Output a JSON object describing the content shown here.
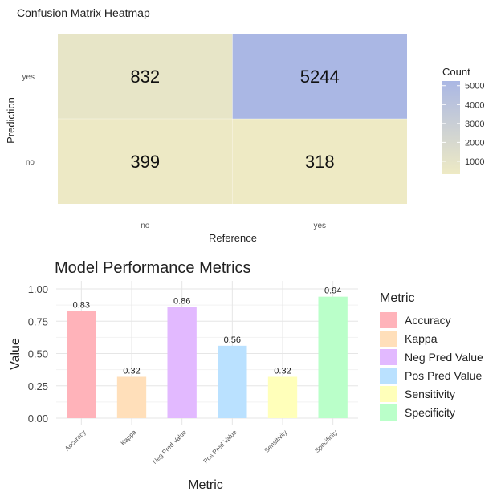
{
  "heatmap": {
    "title": "Confusion Matrix Heatmap",
    "xlabel": "Reference",
    "ylabel": "Prediction",
    "x_categories": [
      "no",
      "yes"
    ],
    "y_categories": [
      "no",
      "yes"
    ],
    "legend": {
      "title": "Count",
      "ticks": [
        1000,
        2000,
        3000,
        4000,
        5000
      ],
      "low_color": "#eeeac4",
      "high_color": "#aab7e4",
      "min": 318,
      "max": 5244
    }
  },
  "metrics": {
    "title": "Model Performance Metrics",
    "xlabel": "Metric",
    "ylabel": "Value",
    "legend_title": "Metric"
  },
  "chart_data": [
    {
      "type": "heatmap",
      "title": "Confusion Matrix Heatmap",
      "xlabel": "Reference",
      "ylabel": "Prediction",
      "x": [
        "no",
        "yes"
      ],
      "y": [
        "no",
        "yes"
      ],
      "cells": [
        {
          "x": "no",
          "y": "yes",
          "value": 832
        },
        {
          "x": "yes",
          "y": "yes",
          "value": 5244
        },
        {
          "x": "no",
          "y": "no",
          "value": 399
        },
        {
          "x": "yes",
          "y": "no",
          "value": 318
        }
      ],
      "legend": "right"
    },
    {
      "type": "bar",
      "title": "Model Performance Metrics",
      "xlabel": "Metric",
      "ylabel": "Value",
      "categories": [
        "Accuracy",
        "Kappa",
        "Neg Pred Value",
        "Pos Pred Value",
        "Sensitivity",
        "Specificity"
      ],
      "values": [
        0.83,
        0.32,
        0.86,
        0.56,
        0.32,
        0.94
      ],
      "labels": [
        "0.83",
        "0.32",
        "0.86",
        "0.56",
        "0.32",
        "0.94"
      ],
      "colors": [
        "#ffb3ba",
        "#ffdfba",
        "#e2b9ff",
        "#bae1ff",
        "#ffffba",
        "#baffc9"
      ],
      "ylim": [
        0,
        1
      ],
      "yticks": [
        "0.00",
        "0.25",
        "0.50",
        "0.75",
        "1.00"
      ],
      "grid": true,
      "legend": "right"
    }
  ]
}
